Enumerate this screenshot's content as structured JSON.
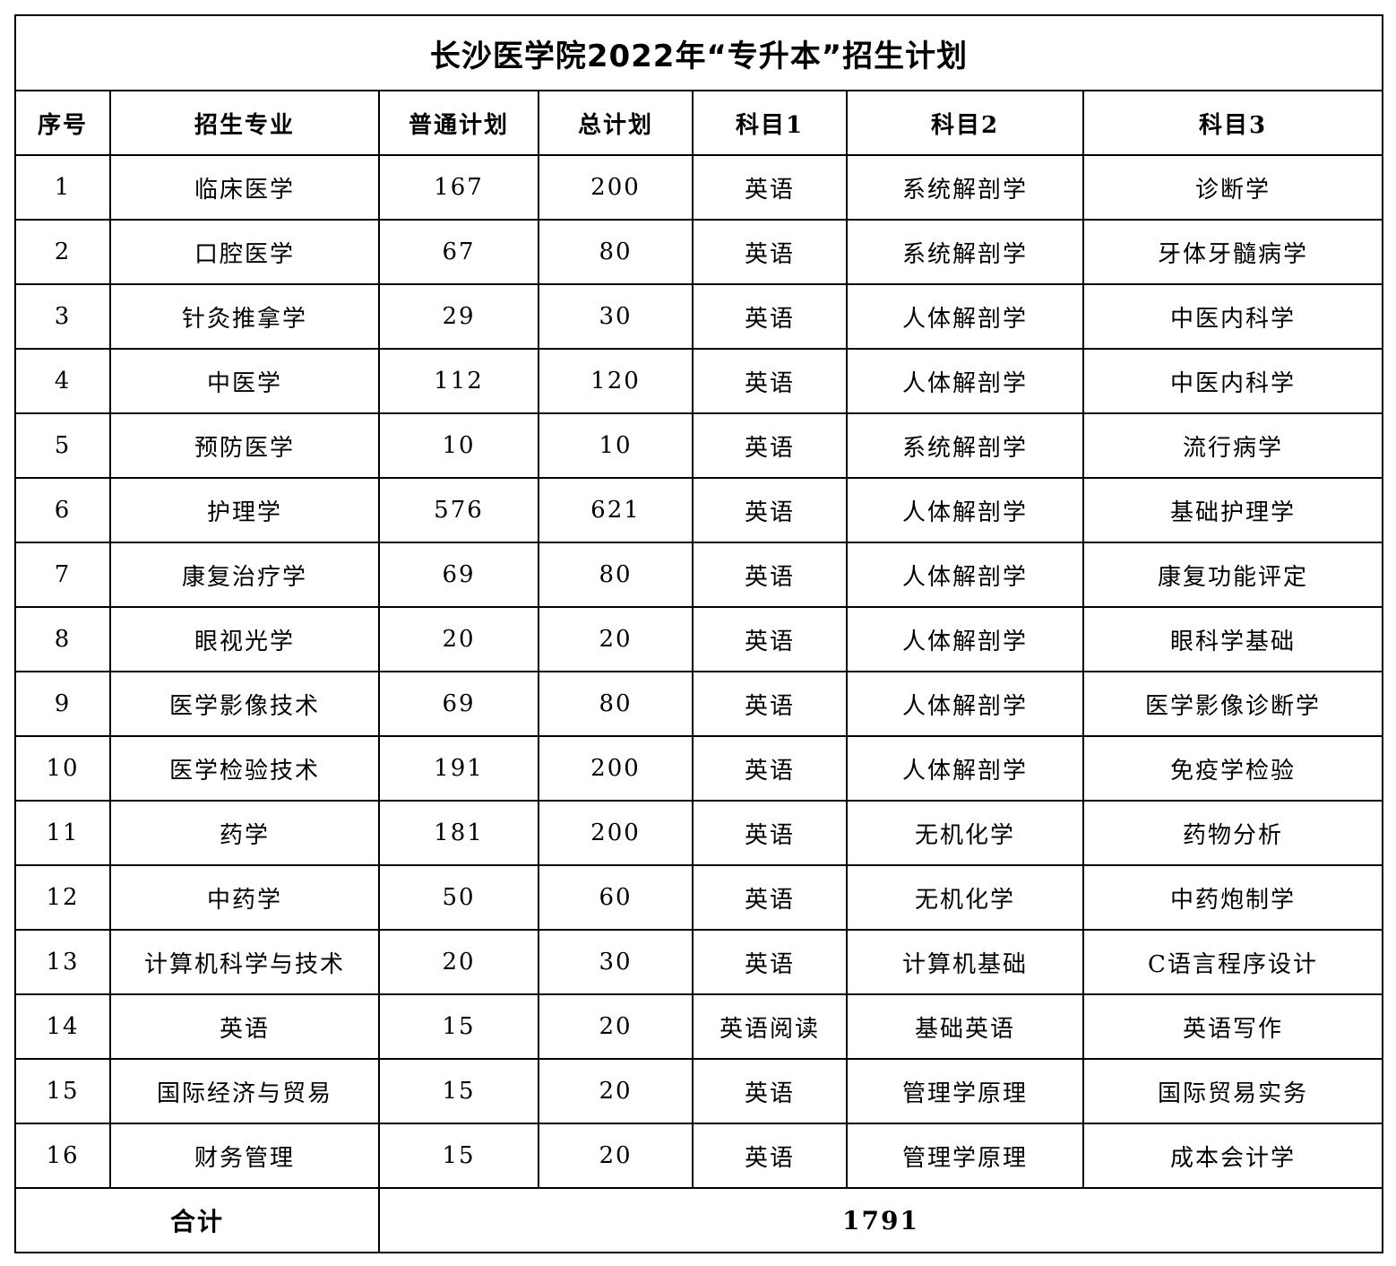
{
  "title": "长沙医学院2022年“专升本”招生计划",
  "headers": [
    "序号",
    "招生专业",
    "普通计划",
    "总计划",
    "科目1",
    "科目2",
    "科目3"
  ],
  "rows": [
    [
      "1",
      "临床医学",
      "167",
      "200",
      "英语",
      "系统解剖学",
      "诊断学"
    ],
    [
      "2",
      "口腔医学",
      "67",
      "80",
      "英语",
      "系统解剖学",
      "牙体牙髓病学"
    ],
    [
      "3",
      "针灸推拿学",
      "29",
      "30",
      "英语",
      "人体解剖学",
      "中医内科学"
    ],
    [
      "4",
      "中医学",
      "112",
      "120",
      "英语",
      "人体解剖学",
      "中医内科学"
    ],
    [
      "5",
      "预防医学",
      "10",
      "10",
      "英语",
      "系统解剖学",
      "流行病学"
    ],
    [
      "6",
      "护理学",
      "576",
      "621",
      "英语",
      "人体解剖学",
      "基础护理学"
    ],
    [
      "7",
      "康复治疗学",
      "69",
      "80",
      "英语",
      "人体解剖学",
      "康复功能评定"
    ],
    [
      "8",
      "眼视光学",
      "20",
      "20",
      "英语",
      "人体解剖学",
      "眼科学基础"
    ],
    [
      "9",
      "医学影像技术",
      "69",
      "80",
      "英语",
      "人体解剖学",
      "医学影像诊断学"
    ],
    [
      "10",
      "医学检验技术",
      "191",
      "200",
      "英语",
      "人体解剖学",
      "免疫学检验"
    ],
    [
      "11",
      "药学",
      "181",
      "200",
      "英语",
      "无机化学",
      "药物分析"
    ],
    [
      "12",
      "中药学",
      "50",
      "60",
      "英语",
      "无机化学",
      "中药炮制学"
    ],
    [
      "13",
      "计算机科学与技术",
      "20",
      "30",
      "英语",
      "计算机基础",
      "C语言程序设计"
    ],
    [
      "14",
      "英语",
      "15",
      "20",
      "英语阅读",
      "基础英语",
      "英语写作"
    ],
    [
      "15",
      "国际经济与贸易",
      "15",
      "20",
      "英语",
      "管理学原理",
      "国际贸易实务"
    ],
    [
      "16",
      "财务管理",
      "15",
      "20",
      "英语",
      "管理学原理",
      "成本会计学"
    ]
  ],
  "total": {
    "label": "合计",
    "value": "1791"
  }
}
